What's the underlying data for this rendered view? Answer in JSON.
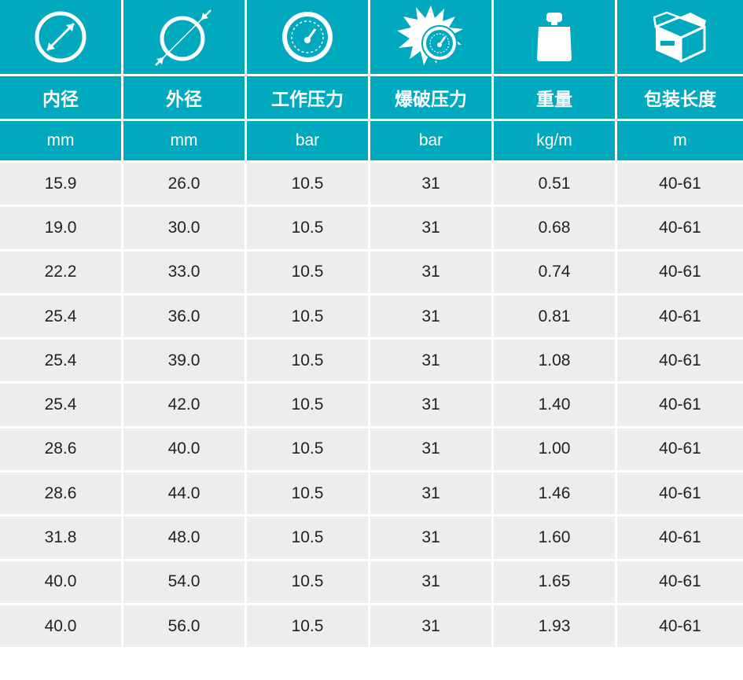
{
  "header": {
    "icons": [
      "inner-diameter-icon",
      "outer-diameter-icon",
      "pressure-gauge-icon",
      "burst-pressure-icon",
      "weight-icon",
      "package-box-icon"
    ],
    "columns": [
      "内径",
      "外径",
      "工作压力",
      "爆破压力",
      "重量",
      "包装长度"
    ],
    "units": [
      "mm",
      "mm",
      "bar",
      "bar",
      "kg/m",
      "m"
    ]
  },
  "rows": [
    [
      "15.9",
      "26.0",
      "10.5",
      "31",
      "0.51",
      "40-61"
    ],
    [
      "19.0",
      "30.0",
      "10.5",
      "31",
      "0.68",
      "40-61"
    ],
    [
      "22.2",
      "33.0",
      "10.5",
      "31",
      "0.74",
      "40-61"
    ],
    [
      "25.4",
      "36.0",
      "10.5",
      "31",
      "0.81",
      "40-61"
    ],
    [
      "25.4",
      "39.0",
      "10.5",
      "31",
      "1.08",
      "40-61"
    ],
    [
      "25.4",
      "42.0",
      "10.5",
      "31",
      "1.40",
      "40-61"
    ],
    [
      "28.6",
      "40.0",
      "10.5",
      "31",
      "1.00",
      "40-61"
    ],
    [
      "28.6",
      "44.0",
      "10.5",
      "31",
      "1.46",
      "40-61"
    ],
    [
      "31.8",
      "48.0",
      "10.5",
      "31",
      "1.60",
      "40-61"
    ],
    [
      "40.0",
      "54.0",
      "10.5",
      "31",
      "1.65",
      "40-61"
    ],
    [
      "40.0",
      "56.0",
      "10.5",
      "31",
      "1.93",
      "40-61"
    ]
  ],
  "colors": {
    "accent": "#01a9bf",
    "row_bg": "#ededed",
    "text": "#222222"
  }
}
